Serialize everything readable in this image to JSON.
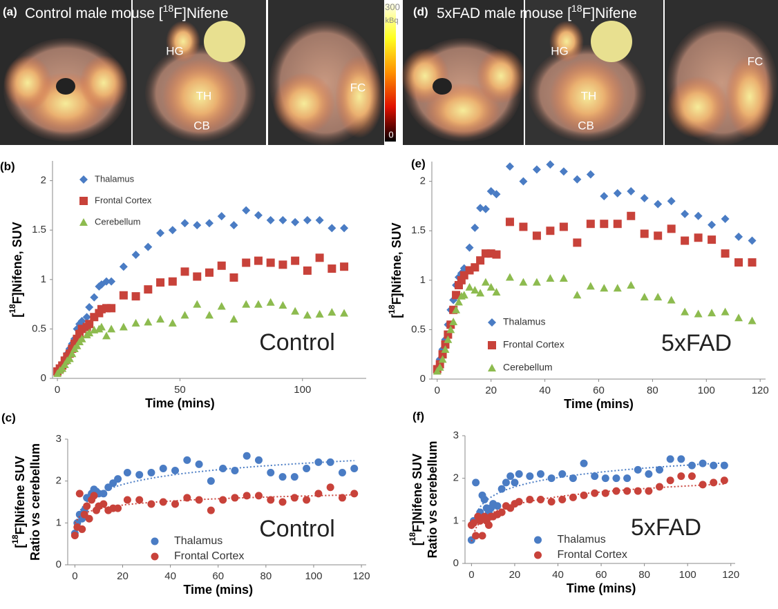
{
  "images": [
    {
      "panel": "(a)",
      "title": [
        "Control male mouse [",
        "18",
        "F]Nifene"
      ],
      "labels": [
        "HG",
        "TH",
        "CB",
        "FC"
      ],
      "colorbar": {
        "max": "300",
        "unit": "kBq",
        "min": "0"
      }
    },
    {
      "panel": "(d)",
      "title": [
        "5xFAD male mouse [",
        "18",
        "F]Nifene"
      ],
      "labels": [
        "HG",
        "TH",
        "CB",
        "FC"
      ]
    }
  ],
  "chart_data": [
    {
      "type": "scatter",
      "panel": "(b)",
      "annotation": "Control",
      "x_label": "Time (mins)",
      "y_label": [
        "[",
        "18",
        "F]Nifene, SUV"
      ],
      "xlim": [
        -2,
        126
      ],
      "ylim": [
        0,
        2.2
      ],
      "xticks": [
        0,
        50,
        100
      ],
      "yticks": [
        0,
        0.5,
        1,
        1.5,
        2
      ],
      "legend": "upper left",
      "x": [
        0,
        1,
        2,
        3,
        4,
        5,
        6,
        7,
        8,
        9,
        10,
        12,
        13,
        15,
        17,
        18,
        20,
        22,
        27,
        32,
        37,
        42,
        47,
        52,
        57,
        62,
        67,
        72,
        77,
        82,
        87,
        92,
        97,
        102,
        107,
        112,
        117
      ],
      "series": [
        {
          "name": "Thalamus",
          "color": "#4a7cc4",
          "marker": "diamond",
          "values": [
            0.07,
            0.1,
            0.15,
            0.2,
            0.25,
            0.3,
            0.35,
            0.4,
            0.5,
            0.55,
            0.58,
            0.62,
            0.72,
            0.82,
            0.93,
            0.95,
            0.98,
            0.98,
            1.13,
            1.25,
            1.33,
            1.47,
            1.5,
            1.57,
            1.55,
            1.57,
            1.64,
            1.55,
            1.7,
            1.65,
            1.6,
            1.6,
            1.58,
            1.6,
            1.6,
            1.52,
            1.52
          ]
        },
        {
          "name": "Frontal Cortex",
          "color": "#c8423a",
          "marker": "square",
          "values": [
            0.07,
            0.1,
            0.13,
            0.18,
            0.22,
            0.25,
            0.3,
            0.35,
            0.4,
            0.45,
            0.5,
            0.52,
            0.55,
            0.62,
            0.66,
            0.7,
            0.71,
            0.71,
            0.84,
            0.83,
            0.9,
            0.97,
            0.98,
            1.08,
            1.03,
            1.07,
            1.14,
            1.02,
            1.17,
            1.19,
            1.17,
            1.15,
            1.19,
            1.09,
            1.22,
            1.11,
            1.13
          ]
        },
        {
          "name": "Cerebellum",
          "color": "#8dbb4f",
          "marker": "triangle",
          "values": [
            0.05,
            0.08,
            0.1,
            0.14,
            0.18,
            0.2,
            0.25,
            0.3,
            0.33,
            0.37,
            0.4,
            0.44,
            0.46,
            0.49,
            0.5,
            0.52,
            0.43,
            0.5,
            0.52,
            0.56,
            0.57,
            0.6,
            0.56,
            0.64,
            0.75,
            0.64,
            0.73,
            0.6,
            0.75,
            0.75,
            0.77,
            0.74,
            0.68,
            0.64,
            0.65,
            0.67,
            0.66
          ]
        }
      ]
    },
    {
      "type": "scatter",
      "panel": "(e)",
      "annotation": "5xFAD",
      "x_label": "Time (mins)",
      "y_label": [
        "[",
        "18",
        "F]Nifene, SUV"
      ],
      "xlim": [
        -2,
        122
      ],
      "ylim": [
        0,
        2.2
      ],
      "xticks": [
        0,
        20,
        40,
        60,
        80,
        100,
        120
      ],
      "yticks": [
        0,
        0.5,
        1,
        1.5,
        2
      ],
      "legend": "lower left",
      "x": [
        0,
        1,
        2,
        3,
        4,
        5,
        6,
        7,
        8,
        9,
        10,
        12,
        14,
        16,
        18,
        20,
        22,
        27,
        32,
        37,
        42,
        47,
        52,
        57,
        62,
        67,
        72,
        77,
        82,
        87,
        92,
        97,
        102,
        107,
        112,
        117
      ],
      "series": [
        {
          "name": "Thalamus",
          "color": "#4a7cc4",
          "marker": "diamond",
          "values": [
            0.1,
            0.2,
            0.3,
            0.4,
            0.55,
            0.7,
            0.8,
            0.95,
            1.03,
            1.07,
            1.12,
            1.33,
            1.53,
            1.73,
            1.72,
            1.9,
            1.87,
            2.15,
            2.0,
            2.12,
            2.17,
            2.1,
            2.02,
            2.07,
            1.85,
            1.88,
            1.9,
            1.83,
            1.77,
            1.8,
            1.67,
            1.65,
            1.56,
            1.62,
            1.44,
            1.4
          ]
        },
        {
          "name": "Frontal Cortex",
          "color": "#c8423a",
          "marker": "square",
          "values": [
            0.1,
            0.15,
            0.25,
            0.35,
            0.45,
            0.55,
            0.7,
            0.85,
            0.95,
            1.0,
            1.05,
            1.1,
            1.13,
            1.2,
            1.27,
            1.27,
            1.26,
            1.59,
            1.54,
            1.45,
            1.5,
            1.54,
            1.38,
            1.57,
            1.57,
            1.57,
            1.65,
            1.47,
            1.45,
            1.52,
            1.4,
            1.43,
            1.41,
            1.27,
            1.18,
            1.18
          ]
        },
        {
          "name": "Cerebellum",
          "color": "#8dbb4f",
          "marker": "triangle",
          "values": [
            0.08,
            0.12,
            0.2,
            0.3,
            0.4,
            0.5,
            0.58,
            0.7,
            0.78,
            0.84,
            0.85,
            0.93,
            0.9,
            0.87,
            0.98,
            0.93,
            0.88,
            1.03,
            0.98,
            0.98,
            1.02,
            1.02,
            0.85,
            0.94,
            0.92,
            0.92,
            0.95,
            0.83,
            0.83,
            0.8,
            0.68,
            0.66,
            0.67,
            0.68,
            0.62,
            0.59
          ]
        }
      ]
    },
    {
      "type": "scatter",
      "panel": "(c)",
      "annotation": "Control",
      "x_label": "Time (mins)",
      "y_label": [
        "[",
        "18",
        "F]Nifene SUV"
      ],
      "y_label_2": "Ratio vs cerebellum",
      "xlim": [
        -3,
        122
      ],
      "ylim": [
        0,
        3
      ],
      "xticks": [
        0,
        20,
        40,
        60,
        80,
        100,
        120
      ],
      "yticks": [
        0,
        1,
        2,
        3
      ],
      "legend": "lower center",
      "trendline": true,
      "x": [
        0,
        1,
        2,
        3,
        4,
        5,
        6,
        7,
        8,
        9,
        10,
        12,
        14,
        16,
        18,
        22,
        27,
        32,
        37,
        42,
        47,
        52,
        57,
        62,
        67,
        72,
        77,
        82,
        87,
        92,
        97,
        102,
        107,
        112,
        117
      ],
      "series": [
        {
          "name": "Thalamus",
          "color": "#4a7cc4",
          "marker": "circle",
          "values": [
            0.75,
            1.0,
            1.2,
            1.1,
            1.3,
            1.6,
            1.6,
            1.7,
            1.8,
            1.75,
            1.7,
            1.7,
            1.85,
            1.95,
            2.05,
            2.2,
            2.15,
            2.2,
            2.3,
            2.25,
            2.5,
            2.4,
            2.0,
            2.3,
            2.25,
            2.6,
            2.5,
            2.2,
            2.1,
            2.1,
            2.3,
            2.45,
            2.45,
            2.2,
            2.3
          ]
        },
        {
          "name": "Frontal Cortex",
          "color": "#c8423a",
          "marker": "circle",
          "values": [
            0.7,
            0.9,
            1.7,
            0.85,
            1.2,
            1.4,
            1.1,
            1.55,
            1.65,
            1.3,
            1.4,
            1.45,
            1.3,
            1.35,
            1.35,
            1.55,
            1.55,
            1.45,
            1.5,
            1.45,
            1.6,
            1.55,
            1.3,
            1.55,
            1.6,
            1.65,
            1.65,
            1.55,
            1.5,
            1.6,
            1.55,
            1.7,
            1.85,
            1.6,
            1.7
          ]
        }
      ]
    },
    {
      "type": "scatter",
      "panel": "(f)",
      "annotation": "5xFAD",
      "x_label": "Time (mins)",
      "y_label": [
        "[",
        "18",
        "F]Nifene SUV"
      ],
      "y_label_2": "Ratio vs cerebellum",
      "xlim": [
        -3,
        122
      ],
      "ylim": [
        0,
        3
      ],
      "xticks": [
        0,
        20,
        40,
        60,
        80,
        100,
        120
      ],
      "yticks": [
        0,
        1,
        2,
        3
      ],
      "legend": "lower center",
      "trendline": true,
      "x": [
        0,
        1,
        2,
        3,
        4,
        5,
        6,
        7,
        8,
        9,
        10,
        12,
        14,
        16,
        18,
        20,
        22,
        27,
        32,
        37,
        42,
        47,
        52,
        57,
        62,
        67,
        72,
        77,
        82,
        87,
        92,
        97,
        102,
        107,
        112,
        117
      ],
      "series": [
        {
          "name": "Thalamus",
          "color": "#4a7cc4",
          "marker": "circle",
          "values": [
            0.55,
            1.0,
            1.9,
            1.1,
            1.2,
            1.6,
            1.5,
            1.3,
            1.2,
            1.3,
            1.4,
            1.35,
            1.75,
            1.9,
            2.05,
            1.9,
            2.1,
            2.05,
            2.1,
            2.0,
            2.1,
            2.0,
            2.35,
            2.05,
            2.0,
            2.0,
            2.0,
            2.2,
            2.1,
            2.2,
            2.45,
            2.45,
            2.3,
            2.35,
            2.3,
            2.3
          ]
        },
        {
          "name": "Frontal Cortex",
          "color": "#c8423a",
          "marker": "circle",
          "values": [
            0.9,
            0.95,
            0.65,
            1.1,
            1.0,
            0.65,
            1.1,
            1.0,
            0.9,
            1.1,
            1.1,
            1.15,
            1.2,
            1.35,
            1.3,
            1.4,
            1.45,
            1.5,
            1.5,
            1.45,
            1.5,
            1.55,
            1.6,
            1.65,
            1.65,
            1.7,
            1.7,
            1.7,
            1.7,
            1.8,
            1.95,
            2.05,
            2.05,
            1.85,
            1.9,
            1.95
          ]
        }
      ]
    }
  ]
}
